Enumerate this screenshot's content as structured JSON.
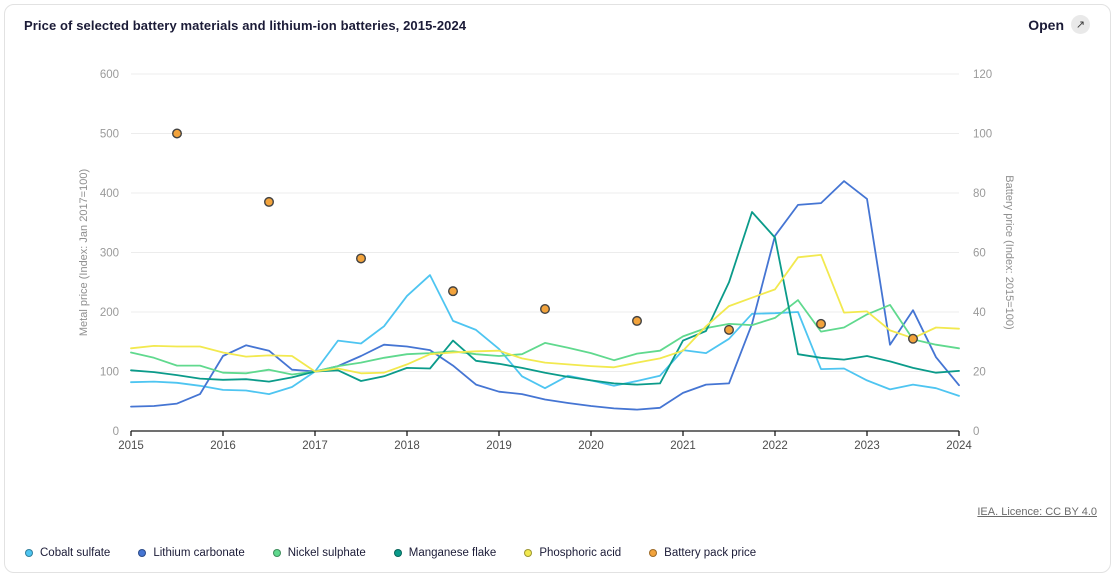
{
  "header": {
    "title": "Price of selected battery materials and lithium-ion batteries, 2015-2024",
    "open_label": "Open",
    "open_icon": "external-link-icon",
    "open_icon_glyph": "↗"
  },
  "footer": {
    "attribution": "IEA. Licence: CC BY 4.0"
  },
  "colors": {
    "cobalt_sulfate": "#4ec5f1",
    "lithium_carbonate": "#4575d3",
    "nickel_sulphate": "#60d98e",
    "manganese_flake": "#0b9b8a",
    "phosphoric_acid": "#f2e94f",
    "battery_pack_fill": "#f2a33c",
    "battery_pack_stroke": "#424242",
    "grid": "#ececec",
    "axis_line": "#1a1a1a",
    "y_tick_text": "#9a9a9a",
    "x_tick_text": "#4d4d4d",
    "axis_title_text": "#8f8f8f"
  },
  "chart_data": {
    "type": "line+scatter",
    "title": "Price of selected battery materials and lithium-ion batteries, 2015-2024",
    "x_min": 2015,
    "x_max": 2024,
    "x_tick_labels": [
      "2015",
      "2016",
      "2017",
      "2018",
      "2019",
      "2020",
      "2021",
      "2022",
      "2023",
      "2024"
    ],
    "left_axis": {
      "label": "Metal price (Index: Jan 2017=100)",
      "min": 0,
      "max": 600,
      "step": 100
    },
    "right_axis": {
      "label": "Battery price (Index: 2015=100)",
      "min": 0,
      "max": 120,
      "step": 20
    },
    "grid": true,
    "legend_position": "bottom",
    "x": [
      2015,
      2015.25,
      2015.5,
      2015.75,
      2016,
      2016.25,
      2016.5,
      2016.75,
      2017,
      2017.25,
      2017.5,
      2017.75,
      2018,
      2018.25,
      2018.5,
      2018.75,
      2019,
      2019.25,
      2019.5,
      2019.75,
      2020,
      2020.25,
      2020.5,
      2020.75,
      2021,
      2021.25,
      2021.5,
      2021.75,
      2022,
      2022.25,
      2022.5,
      2022.75,
      2023,
      2023.25,
      2023.5,
      2023.75,
      2024
    ],
    "series": [
      {
        "name": "Cobalt sulfate",
        "axis": "left",
        "color_key": "cobalt_sulfate",
        "values": [
          82,
          83,
          81,
          76,
          69,
          68,
          62,
          74,
          100,
          152,
          147,
          176,
          227,
          262,
          185,
          170,
          138,
          92,
          72,
          93,
          85,
          76,
          84,
          93,
          136,
          131,
          155,
          197,
          198,
          200,
          104,
          105,
          85,
          70,
          78,
          72,
          59
        ]
      },
      {
        "name": "Lithium carbonate",
        "axis": "left",
        "color_key": "lithium_carbonate",
        "values": [
          41,
          42,
          46,
          62,
          126,
          144,
          135,
          103,
          100,
          109,
          126,
          145,
          142,
          136,
          110,
          78,
          66,
          62,
          53,
          47,
          42,
          38,
          36,
          39,
          64,
          78,
          80,
          180,
          328,
          380,
          383,
          420,
          390,
          145,
          203,
          124,
          77
        ]
      },
      {
        "name": "Nickel sulphate",
        "axis": "left",
        "color_key": "nickel_sulphate",
        "values": [
          132,
          123,
          110,
          110,
          98,
          97,
          103,
          95,
          100,
          109,
          115,
          123,
          129,
          131,
          134,
          129,
          126,
          129,
          148,
          140,
          131,
          119,
          130,
          135,
          159,
          173,
          180,
          178,
          190,
          220,
          167,
          174,
          196,
          212,
          154,
          145,
          139
        ]
      },
      {
        "name": "Manganese flake",
        "axis": "left",
        "color_key": "manganese_flake",
        "values": [
          102,
          99,
          94,
          88,
          86,
          87,
          83,
          90,
          100,
          102,
          84,
          92,
          106,
          105,
          152,
          118,
          113,
          106,
          98,
          91,
          85,
          80,
          78,
          80,
          152,
          168,
          250,
          368,
          325,
          129,
          123,
          120,
          126,
          117,
          106,
          98,
          101
        ]
      },
      {
        "name": "Phosphoric acid",
        "axis": "left",
        "color_key": "phosphoric_acid",
        "values": [
          139,
          143,
          142,
          142,
          132,
          125,
          127,
          126,
          100,
          105,
          97,
          98,
          112,
          129,
          132,
          134,
          135,
          122,
          115,
          112,
          109,
          107,
          115,
          122,
          135,
          176,
          210,
          224,
          238,
          292,
          296,
          199,
          201,
          169,
          156,
          174,
          172
        ]
      }
    ],
    "scatter": {
      "name": "Battery pack price",
      "axis": "right",
      "fill_key": "battery_pack_fill",
      "stroke_key": "battery_pack_stroke",
      "x": [
        2015.5,
        2016.5,
        2017.5,
        2018.5,
        2019.5,
        2020.5,
        2021.5,
        2022.5,
        2023.5
      ],
      "values": [
        100,
        77,
        58,
        47,
        41,
        37,
        34,
        36,
        31
      ]
    }
  }
}
